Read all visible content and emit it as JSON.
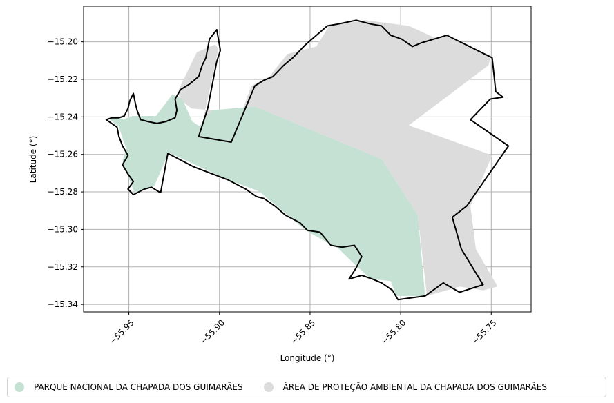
{
  "chart_data": {
    "type": "map",
    "xlabel": "Longitude (°)",
    "ylabel": "Latitude (°)",
    "xlim": [
      -55.975,
      -55.728
    ],
    "ylim": [
      -15.344,
      -15.181
    ],
    "xticks": [
      -55.95,
      -55.9,
      -55.85,
      -55.8,
      -55.75
    ],
    "xtick_labels": [
      "−55.95",
      "−55.90",
      "−55.85",
      "−55.80",
      "−55.75"
    ],
    "yticks": [
      -15.2,
      -15.22,
      -15.24,
      -15.26,
      -15.28,
      -15.3,
      -15.32,
      -15.34
    ],
    "ytick_labels": [
      "−15.20",
      "−15.22",
      "−15.24",
      "−15.26",
      "−15.28",
      "−15.30",
      "−15.32",
      "−15.34"
    ],
    "grid": true,
    "legend_position": "bottom",
    "series": [
      {
        "name": "PARQUE NACIONAL DA CHAPADA DOS GUIMARÃES",
        "color": "#c5e1d4",
        "polygon": [
          [
            -55.926,
            -15.228
          ],
          [
            -55.935,
            -15.2395
          ],
          [
            -55.948,
            -15.2395
          ],
          [
            -55.952,
            -15.241
          ],
          [
            -55.9615,
            -15.2405
          ],
          [
            -55.9555,
            -15.2455
          ],
          [
            -55.9515,
            -15.257
          ],
          [
            -55.9535,
            -15.2635
          ],
          [
            -55.947,
            -15.2805
          ],
          [
            -55.936,
            -15.277
          ],
          [
            -55.928,
            -15.259
          ],
          [
            -55.8955,
            -15.2735
          ],
          [
            -55.8785,
            -15.2795
          ],
          [
            -55.8635,
            -15.2915
          ],
          [
            -55.8525,
            -15.3005
          ],
          [
            -55.834,
            -15.3105
          ],
          [
            -55.8255,
            -15.3185
          ],
          [
            -55.8165,
            -15.3265
          ],
          [
            -55.8055,
            -15.3275
          ],
          [
            -55.8025,
            -15.3355
          ],
          [
            -55.7865,
            -15.3355
          ],
          [
            -55.7905,
            -15.2925
          ],
          [
            -55.8105,
            -15.2625
          ],
          [
            -55.8805,
            -15.2345
          ],
          [
            -55.904,
            -15.2365
          ],
          [
            -55.911,
            -15.245
          ],
          [
            -55.915,
            -15.2425
          ],
          [
            -55.9205,
            -15.2305
          ]
        ]
      },
      {
        "name": "ÁREA DE PROTEÇÃO AMBIENTAL DA CHAPADA DOS GUIMARÃES",
        "color": "#dcdcdc",
        "polygon": [
          [
            -55.9225,
            -15.2255
          ],
          [
            -55.9125,
            -15.2055
          ],
          [
            -55.9025,
            -15.2015
          ],
          [
            -55.9005,
            -15.2035
          ],
          [
            -55.911,
            -15.2505
          ],
          [
            -55.8935,
            -15.2535
          ],
          [
            -55.8825,
            -15.2235
          ],
          [
            -55.8725,
            -15.2185
          ],
          [
            -55.8625,
            -15.2065
          ],
          [
            -55.8465,
            -15.2025
          ],
          [
            -55.8395,
            -15.1915
          ],
          [
            -55.8195,
            -15.1885
          ],
          [
            -55.7955,
            -15.1915
          ],
          [
            -55.7795,
            -15.1985
          ],
          [
            -55.7735,
            -15.1965
          ],
          [
            -55.7505,
            -15.2085
          ],
          [
            -55.7515,
            -15.2125
          ],
          [
            -55.7955,
            -15.2445
          ],
          [
            -55.7495,
            -15.2605
          ],
          [
            -55.7615,
            -15.2875
          ],
          [
            -55.7585,
            -15.3105
          ],
          [
            -55.7465,
            -15.3305
          ],
          [
            -55.7545,
            -15.3325
          ],
          [
            -55.7675,
            -15.3305
          ],
          [
            -55.7855,
            -15.3355
          ],
          [
            -55.7905,
            -15.2925
          ],
          [
            -55.8105,
            -15.2625
          ],
          [
            -55.8805,
            -15.2345
          ],
          [
            -55.904,
            -15.2365
          ],
          [
            -55.9155,
            -15.2355
          ],
          [
            -55.922,
            -15.2305
          ]
        ]
      }
    ],
    "outline": {
      "color": "#000000",
      "polyline": [
        [
          -55.9325,
          -15.2805
        ],
        [
          -55.9285,
          -15.2595
        ],
        [
          -55.9145,
          -15.2665
        ],
        [
          -55.8955,
          -15.2735
        ],
        [
          -55.8855,
          -15.2785
        ],
        [
          -55.8795,
          -15.2825
        ],
        [
          -55.8755,
          -15.2835
        ],
        [
          -55.8695,
          -15.2875
        ],
        [
          -55.8635,
          -15.2925
        ],
        [
          -55.8555,
          -15.2965
        ],
        [
          -55.8515,
          -15.3005
        ],
        [
          -55.8445,
          -15.3015
        ],
        [
          -55.8385,
          -15.3085
        ],
        [
          -55.8325,
          -15.3095
        ],
        [
          -55.8255,
          -15.3085
        ],
        [
          -55.8215,
          -15.3145
        ],
        [
          -55.8245,
          -15.3205
        ],
        [
          -55.8285,
          -15.3265
        ],
        [
          -55.8215,
          -15.3245
        ],
        [
          -55.8155,
          -15.3265
        ],
        [
          -55.8105,
          -15.3285
        ],
        [
          -55.8045,
          -15.3325
        ],
        [
          -55.8015,
          -15.3375
        ],
        [
          -55.7865,
          -15.3355
        ],
        [
          -55.7765,
          -15.3285
        ],
        [
          -55.7675,
          -15.3335
        ],
        [
          -55.7545,
          -15.3295
        ],
        [
          -55.7665,
          -15.3105
        ],
        [
          -55.7715,
          -15.2935
        ],
        [
          -55.7635,
          -15.2875
        ],
        [
          -55.7405,
          -15.2555
        ],
        [
          -55.7615,
          -15.2415
        ],
        [
          -55.7505,
          -15.2305
        ],
        [
          -55.7435,
          -15.2295
        ],
        [
          -55.7475,
          -15.2265
        ],
        [
          -55.7495,
          -15.2085
        ],
        [
          -55.7745,
          -15.1965
        ],
        [
          -55.7815,
          -15.1985
        ],
        [
          -55.7885,
          -15.2005
        ],
        [
          -55.7935,
          -15.2025
        ],
        [
          -55.7995,
          -15.1985
        ],
        [
          -55.8055,
          -15.1965
        ],
        [
          -55.8105,
          -15.1915
        ],
        [
          -55.8165,
          -15.1905
        ],
        [
          -55.8245,
          -15.1885
        ],
        [
          -55.8295,
          -15.1895
        ],
        [
          -55.8345,
          -15.1905
        ],
        [
          -55.8405,
          -15.1915
        ],
        [
          -55.8465,
          -15.1965
        ],
        [
          -55.8525,
          -15.2015
        ],
        [
          -55.8545,
          -15.2035
        ],
        [
          -55.8595,
          -15.2085
        ],
        [
          -55.8645,
          -15.2125
        ],
        [
          -55.8705,
          -15.2185
        ],
        [
          -55.8755,
          -15.2205
        ],
        [
          -55.8805,
          -15.2235
        ],
        [
          -55.8935,
          -15.2535
        ],
        [
          -55.9115,
          -15.2505
        ],
        [
          -55.9065,
          -15.2355
        ],
        [
          -55.9015,
          -15.2105
        ],
        [
          -55.8995,
          -15.2045
        ],
        [
          -55.9015,
          -15.1935
        ],
        [
          -55.9055,
          -15.1985
        ],
        [
          -55.9065,
          -15.2035
        ],
        [
          -55.9075,
          -15.2085
        ],
        [
          -55.9095,
          -15.2125
        ],
        [
          -55.9115,
          -15.2185
        ],
        [
          -55.9165,
          -15.2225
        ],
        [
          -55.9215,
          -15.2255
        ],
        [
          -55.9245,
          -15.2305
        ],
        [
          -55.9235,
          -15.2365
        ],
        [
          -55.9245,
          -15.2405
        ],
        [
          -55.9295,
          -15.2425
        ],
        [
          -55.9345,
          -15.2435
        ],
        [
          -55.9395,
          -15.2425
        ],
        [
          -55.9435,
          -15.2415
        ],
        [
          -55.9455,
          -15.2365
        ],
        [
          -55.9465,
          -15.2325
        ],
        [
          -55.9475,
          -15.2275
        ],
        [
          -55.9495,
          -15.2315
        ],
        [
          -55.9505,
          -15.2355
        ],
        [
          -55.9525,
          -15.2395
        ],
        [
          -55.9555,
          -15.2405
        ],
        [
          -55.9595,
          -15.2405
        ],
        [
          -55.9625,
          -15.2415
        ],
        [
          -55.9565,
          -15.2455
        ],
        [
          -55.9555,
          -15.2505
        ],
        [
          -55.9535,
          -15.2555
        ],
        [
          -55.9505,
          -15.2605
        ],
        [
          -55.9535,
          -15.2655
        ],
        [
          -55.9505,
          -15.2705
        ],
        [
          -55.9475,
          -15.2745
        ],
        [
          -55.9505,
          -15.2785
        ],
        [
          -55.9475,
          -15.2815
        ],
        [
          -55.9415,
          -15.2785
        ],
        [
          -55.9375,
          -15.2775
        ],
        [
          -55.9325,
          -15.2805
        ]
      ]
    }
  }
}
